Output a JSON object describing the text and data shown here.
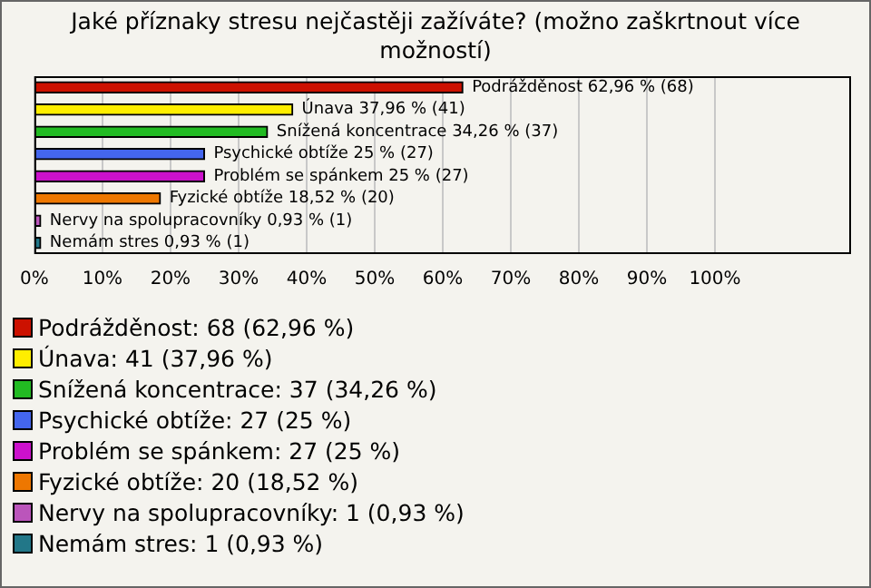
{
  "chart_data": {
    "type": "bar",
    "orientation": "horizontal",
    "stacked": true,
    "title": "Jaké příznaky stresu nejčastěji zažíváte? (možno zaškrtnout více možností)",
    "categories": [
      null,
      null,
      null,
      null,
      null,
      null,
      null,
      null
    ],
    "series": [
      {
        "name": "Podrážděnost: 68 (62,96 %)",
        "color": "#cc1100",
        "values": [
          62.96,
          null,
          null,
          null,
          null,
          null,
          null,
          null
        ],
        "value_labels": [
          "Podrážděnost 62,96 % (68)",
          null,
          null,
          null,
          null,
          null,
          null,
          null
        ]
      },
      {
        "name": "Únava: 41 (37,96 %)",
        "color": "#ffee00",
        "values": [
          null,
          37.96,
          null,
          null,
          null,
          null,
          null,
          null
        ],
        "value_labels": [
          null,
          "Únava 37,96 % (41)",
          null,
          null,
          null,
          null,
          null,
          null
        ]
      },
      {
        "name": "Snížená koncentrace: 37 (34,26 %)",
        "color": "#22bb22",
        "values": [
          null,
          null,
          34.26,
          null,
          null,
          null,
          null,
          null
        ],
        "value_labels": [
          null,
          null,
          "Snížená koncentrace 34,26 % (37)",
          null,
          null,
          null,
          null,
          null
        ]
      },
      {
        "name": "Psychické obtíže: 27 (25 %)",
        "color": "#4466ee",
        "values": [
          null,
          null,
          null,
          25,
          null,
          null,
          null,
          null
        ],
        "value_labels": [
          null,
          null,
          null,
          "Psychické obtíže 25 % (27)",
          null,
          null,
          null,
          null
        ]
      },
      {
        "name": "Problém se spánkem: 27 (25 %)",
        "color": "#cc11cc",
        "values": [
          null,
          null,
          null,
          null,
          25,
          null,
          null,
          null
        ],
        "value_labels": [
          null,
          null,
          null,
          null,
          "Problém se spánkem 25 % (27)",
          null,
          null,
          null
        ]
      },
      {
        "name": "Fyzické obtíže: 20 (18,52 %)",
        "color": "#ee7700",
        "values": [
          null,
          null,
          null,
          null,
          null,
          18.52,
          null,
          null
        ],
        "value_labels": [
          null,
          null,
          null,
          null,
          null,
          "Fyzické obtíže 18,52 % (20)",
          null,
          null
        ]
      },
      {
        "name": "Nervy na spolupracovníky: 1 (0,93 %)",
        "color": "#bb55bb",
        "values": [
          null,
          null,
          null,
          null,
          null,
          null,
          0.93,
          null
        ],
        "value_labels": [
          null,
          null,
          null,
          null,
          null,
          null,
          "Nervy na spolupracovníky 0,93 % (1)",
          null
        ]
      },
      {
        "name": "Nemám stres: 1 (0,93 %)",
        "color": "#227788",
        "values": [
          null,
          null,
          null,
          null,
          null,
          null,
          null,
          0.93
        ],
        "value_labels": [
          null,
          null,
          null,
          null,
          null,
          null,
          null,
          "Nemám stres 0,93 % (1)"
        ]
      }
    ],
    "xlim": [
      0,
      120
    ],
    "xticks": [
      {
        "value": 0,
        "label": "0%"
      },
      {
        "value": 10,
        "label": "10%"
      },
      {
        "value": 20,
        "label": "20%"
      },
      {
        "value": 30,
        "label": "30%"
      },
      {
        "value": 40,
        "label": "40%"
      },
      {
        "value": 50,
        "label": "50%"
      },
      {
        "value": 60,
        "label": "60%"
      },
      {
        "value": 70,
        "label": "70%"
      },
      {
        "value": 80,
        "label": "80%"
      },
      {
        "value": 90,
        "label": "90%"
      },
      {
        "value": 100,
        "label": "100%"
      }
    ],
    "grid": "x",
    "tick_labels": "x",
    "legend": "bottom"
  }
}
